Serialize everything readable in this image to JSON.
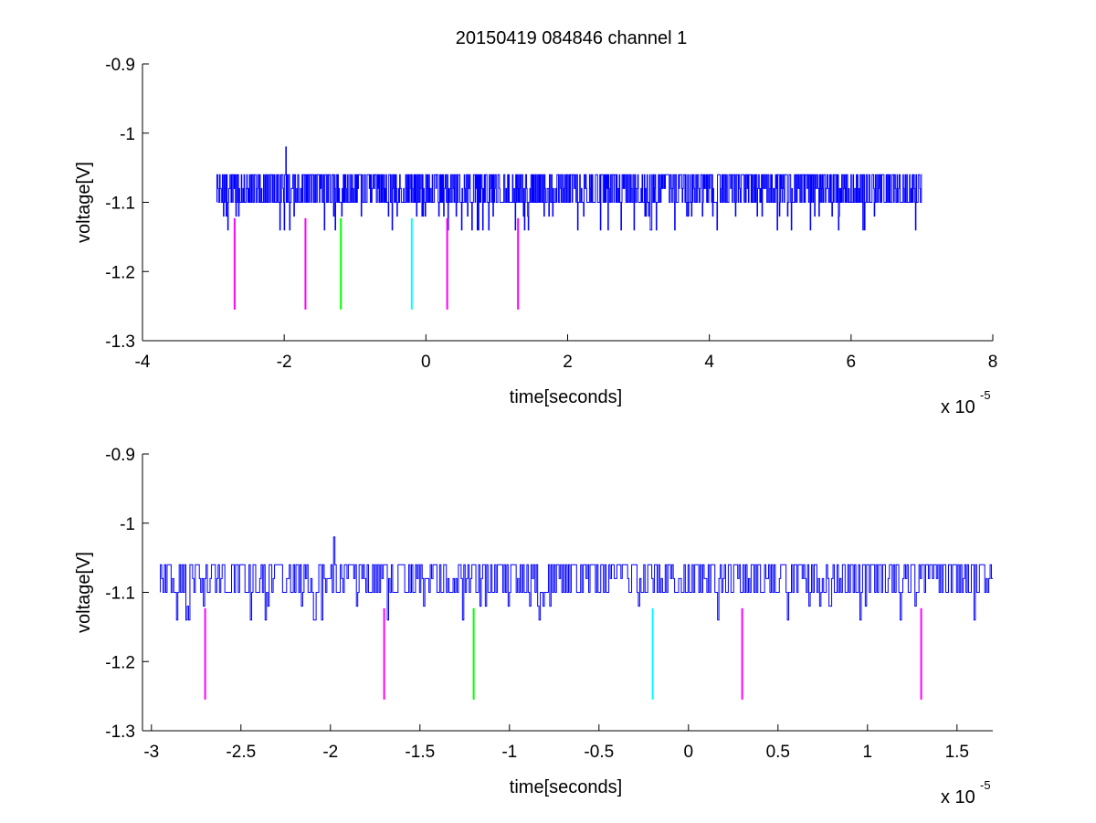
{
  "chart_data": [
    {
      "type": "line",
      "title": "20150419 084846 channel 1",
      "xlabel": "time[seconds]",
      "ylabel": "voltage[V]",
      "x_multiplier_label": {
        "base": "x 10",
        "exponent": "-5"
      },
      "xlim": [
        -4,
        8
      ],
      "ylim": [
        -1.3,
        -0.9
      ],
      "x_ticks": [
        "-4",
        "-2",
        "0",
        "2",
        "4",
        "6",
        "8"
      ],
      "y_ticks": [
        "-0.9",
        "-1",
        "-1.1",
        "-1.2",
        "-1.3"
      ],
      "grid": false,
      "signal": {
        "color": "#0000ff",
        "x_range": [
          -2.95,
          7.0
        ],
        "baseline_levels": [
          -1.06,
          -1.08,
          -1.1
        ],
        "spike": {
          "x": -1.98,
          "y": -1.02
        },
        "dip_level": -1.14
      },
      "markers": [
        {
          "x": -2.7,
          "y_top": -1.123,
          "y_bottom": -1.255,
          "color": "#ff00ff"
        },
        {
          "x": -1.7,
          "y_top": -1.123,
          "y_bottom": -1.255,
          "color": "#ff00ff"
        },
        {
          "x": -1.2,
          "y_top": -1.123,
          "y_bottom": -1.255,
          "color": "#00ff00"
        },
        {
          "x": -0.2,
          "y_top": -1.123,
          "y_bottom": -1.255,
          "color": "#00ffff"
        },
        {
          "x": 0.3,
          "y_top": -1.123,
          "y_bottom": -1.255,
          "color": "#ff00ff"
        },
        {
          "x": 1.3,
          "y_top": -1.123,
          "y_bottom": -1.255,
          "color": "#ff00ff"
        }
      ]
    },
    {
      "type": "line",
      "title": "",
      "xlabel": "time[seconds]",
      "ylabel": "voltage[V]",
      "x_multiplier_label": {
        "base": "x 10",
        "exponent": "-5"
      },
      "xlim": [
        -3.05,
        1.7
      ],
      "ylim": [
        -1.3,
        -0.9
      ],
      "x_ticks": [
        "-3",
        "-2.5",
        "-2",
        "-1.5",
        "-1",
        "-0.5",
        "0",
        "0.5",
        "1",
        "1.5"
      ],
      "y_ticks": [
        "-0.9",
        "-1",
        "-1.1",
        "-1.2",
        "-1.3"
      ],
      "grid": false,
      "signal": {
        "color": "#0000ff",
        "x_range": [
          -2.95,
          1.7
        ],
        "baseline_levels": [
          -1.06,
          -1.08,
          -1.1
        ],
        "spike": {
          "x": -1.98,
          "y": -1.02
        },
        "dip_level": -1.14
      },
      "markers": [
        {
          "x": -2.7,
          "y_top": -1.123,
          "y_bottom": -1.255,
          "color": "#ff00ff"
        },
        {
          "x": -1.7,
          "y_top": -1.123,
          "y_bottom": -1.255,
          "color": "#ff00ff"
        },
        {
          "x": -1.2,
          "y_top": -1.123,
          "y_bottom": -1.255,
          "color": "#00ff00"
        },
        {
          "x": -0.2,
          "y_top": -1.123,
          "y_bottom": -1.255,
          "color": "#00ffff"
        },
        {
          "x": 0.3,
          "y_top": -1.123,
          "y_bottom": -1.255,
          "color": "#ff00ff"
        },
        {
          "x": 1.3,
          "y_top": -1.123,
          "y_bottom": -1.255,
          "color": "#ff00ff"
        }
      ]
    }
  ]
}
